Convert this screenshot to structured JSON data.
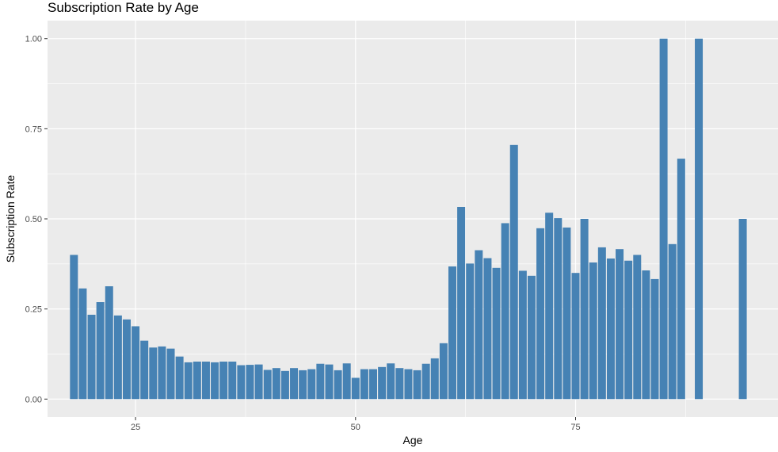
{
  "chart_data": {
    "type": "bar",
    "title": "Subscription Rate by Age",
    "xlabel": "Age",
    "ylabel": "Subscription Rate",
    "xlim": [
      15,
      98
    ],
    "ylim": [
      -0.05,
      1.05
    ],
    "grid": true,
    "bar_color": "#4682B4",
    "panel_color": "#EBEBEB",
    "x_ticks": [
      25,
      50,
      75
    ],
    "y_ticks": [
      0.0,
      0.25,
      0.5,
      0.75,
      1.0
    ],
    "x_tick_labels": [
      "25",
      "50",
      "75"
    ],
    "y_tick_labels": [
      "0.00",
      "0.25",
      "0.50",
      "0.75",
      "1.00"
    ],
    "x": [
      18,
      19,
      20,
      21,
      22,
      23,
      24,
      25,
      26,
      27,
      28,
      29,
      30,
      31,
      32,
      33,
      34,
      35,
      36,
      37,
      38,
      39,
      40,
      41,
      42,
      43,
      44,
      45,
      46,
      47,
      48,
      49,
      50,
      51,
      52,
      53,
      54,
      55,
      56,
      57,
      58,
      59,
      60,
      61,
      62,
      63,
      64,
      65,
      66,
      67,
      68,
      69,
      70,
      71,
      72,
      73,
      74,
      75,
      76,
      77,
      78,
      79,
      80,
      81,
      82,
      83,
      84,
      85,
      86,
      87,
      89,
      94
    ],
    "values": [
      0.4,
      0.307,
      0.234,
      0.269,
      0.313,
      0.232,
      0.221,
      0.202,
      0.162,
      0.143,
      0.146,
      0.14,
      0.118,
      0.102,
      0.104,
      0.104,
      0.102,
      0.104,
      0.104,
      0.094,
      0.095,
      0.096,
      0.081,
      0.086,
      0.078,
      0.086,
      0.08,
      0.083,
      0.098,
      0.096,
      0.08,
      0.099,
      0.059,
      0.083,
      0.083,
      0.089,
      0.099,
      0.086,
      0.083,
      0.08,
      0.098,
      0.113,
      0.155,
      0.368,
      0.533,
      0.376,
      0.413,
      0.391,
      0.364,
      0.488,
      0.705,
      0.356,
      0.342,
      0.474,
      0.517,
      0.502,
      0.476,
      0.35,
      0.5,
      0.379,
      0.421,
      0.39,
      0.416,
      0.384,
      0.4,
      0.357,
      0.333,
      1.0,
      0.43,
      0.667,
      1.0,
      0.5
    ]
  }
}
